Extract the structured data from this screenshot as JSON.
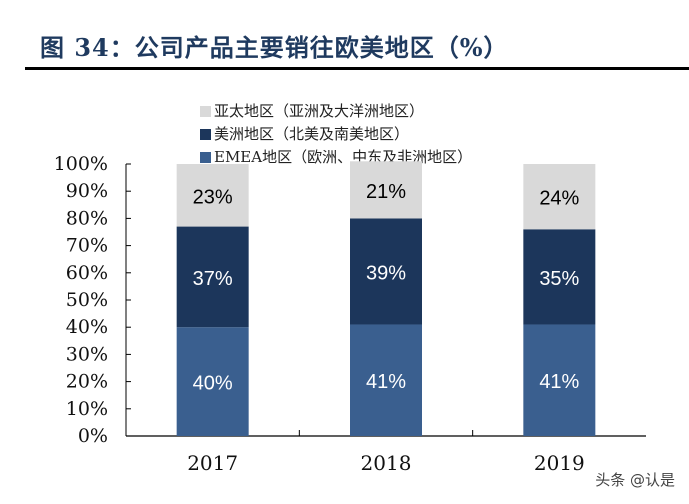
{
  "title": "图 34：公司产品主要销往欧美地区（%）",
  "watermark": "头条 @认是",
  "chart_data": {
    "type": "bar",
    "stacked": true,
    "categories": [
      "2017",
      "2018",
      "2019"
    ],
    "series": [
      {
        "name": "EMEA地区（欧洲、中东及非洲地区）",
        "values": [
          40,
          41,
          41
        ],
        "color": "#3a5f8f",
        "label_color": "#ffffff"
      },
      {
        "name": "美洲地区（北美及南美地区）",
        "values": [
          37,
          39,
          35
        ],
        "color": "#1c365b",
        "label_color": "#ffffff"
      },
      {
        "name": "亚太地区（亚洲及大洋洲地区）",
        "values": [
          23,
          21,
          24
        ],
        "color": "#d9d9d9",
        "label_color": "#000000"
      }
    ],
    "legend_order": [
      2,
      1,
      0
    ],
    "legend_position": "top",
    "ylim": [
      0,
      100
    ],
    "yticks": [
      "0%",
      "10%",
      "20%",
      "30%",
      "40%",
      "50%",
      "60%",
      "70%",
      "80%",
      "90%",
      "100%"
    ],
    "grid": false
  }
}
